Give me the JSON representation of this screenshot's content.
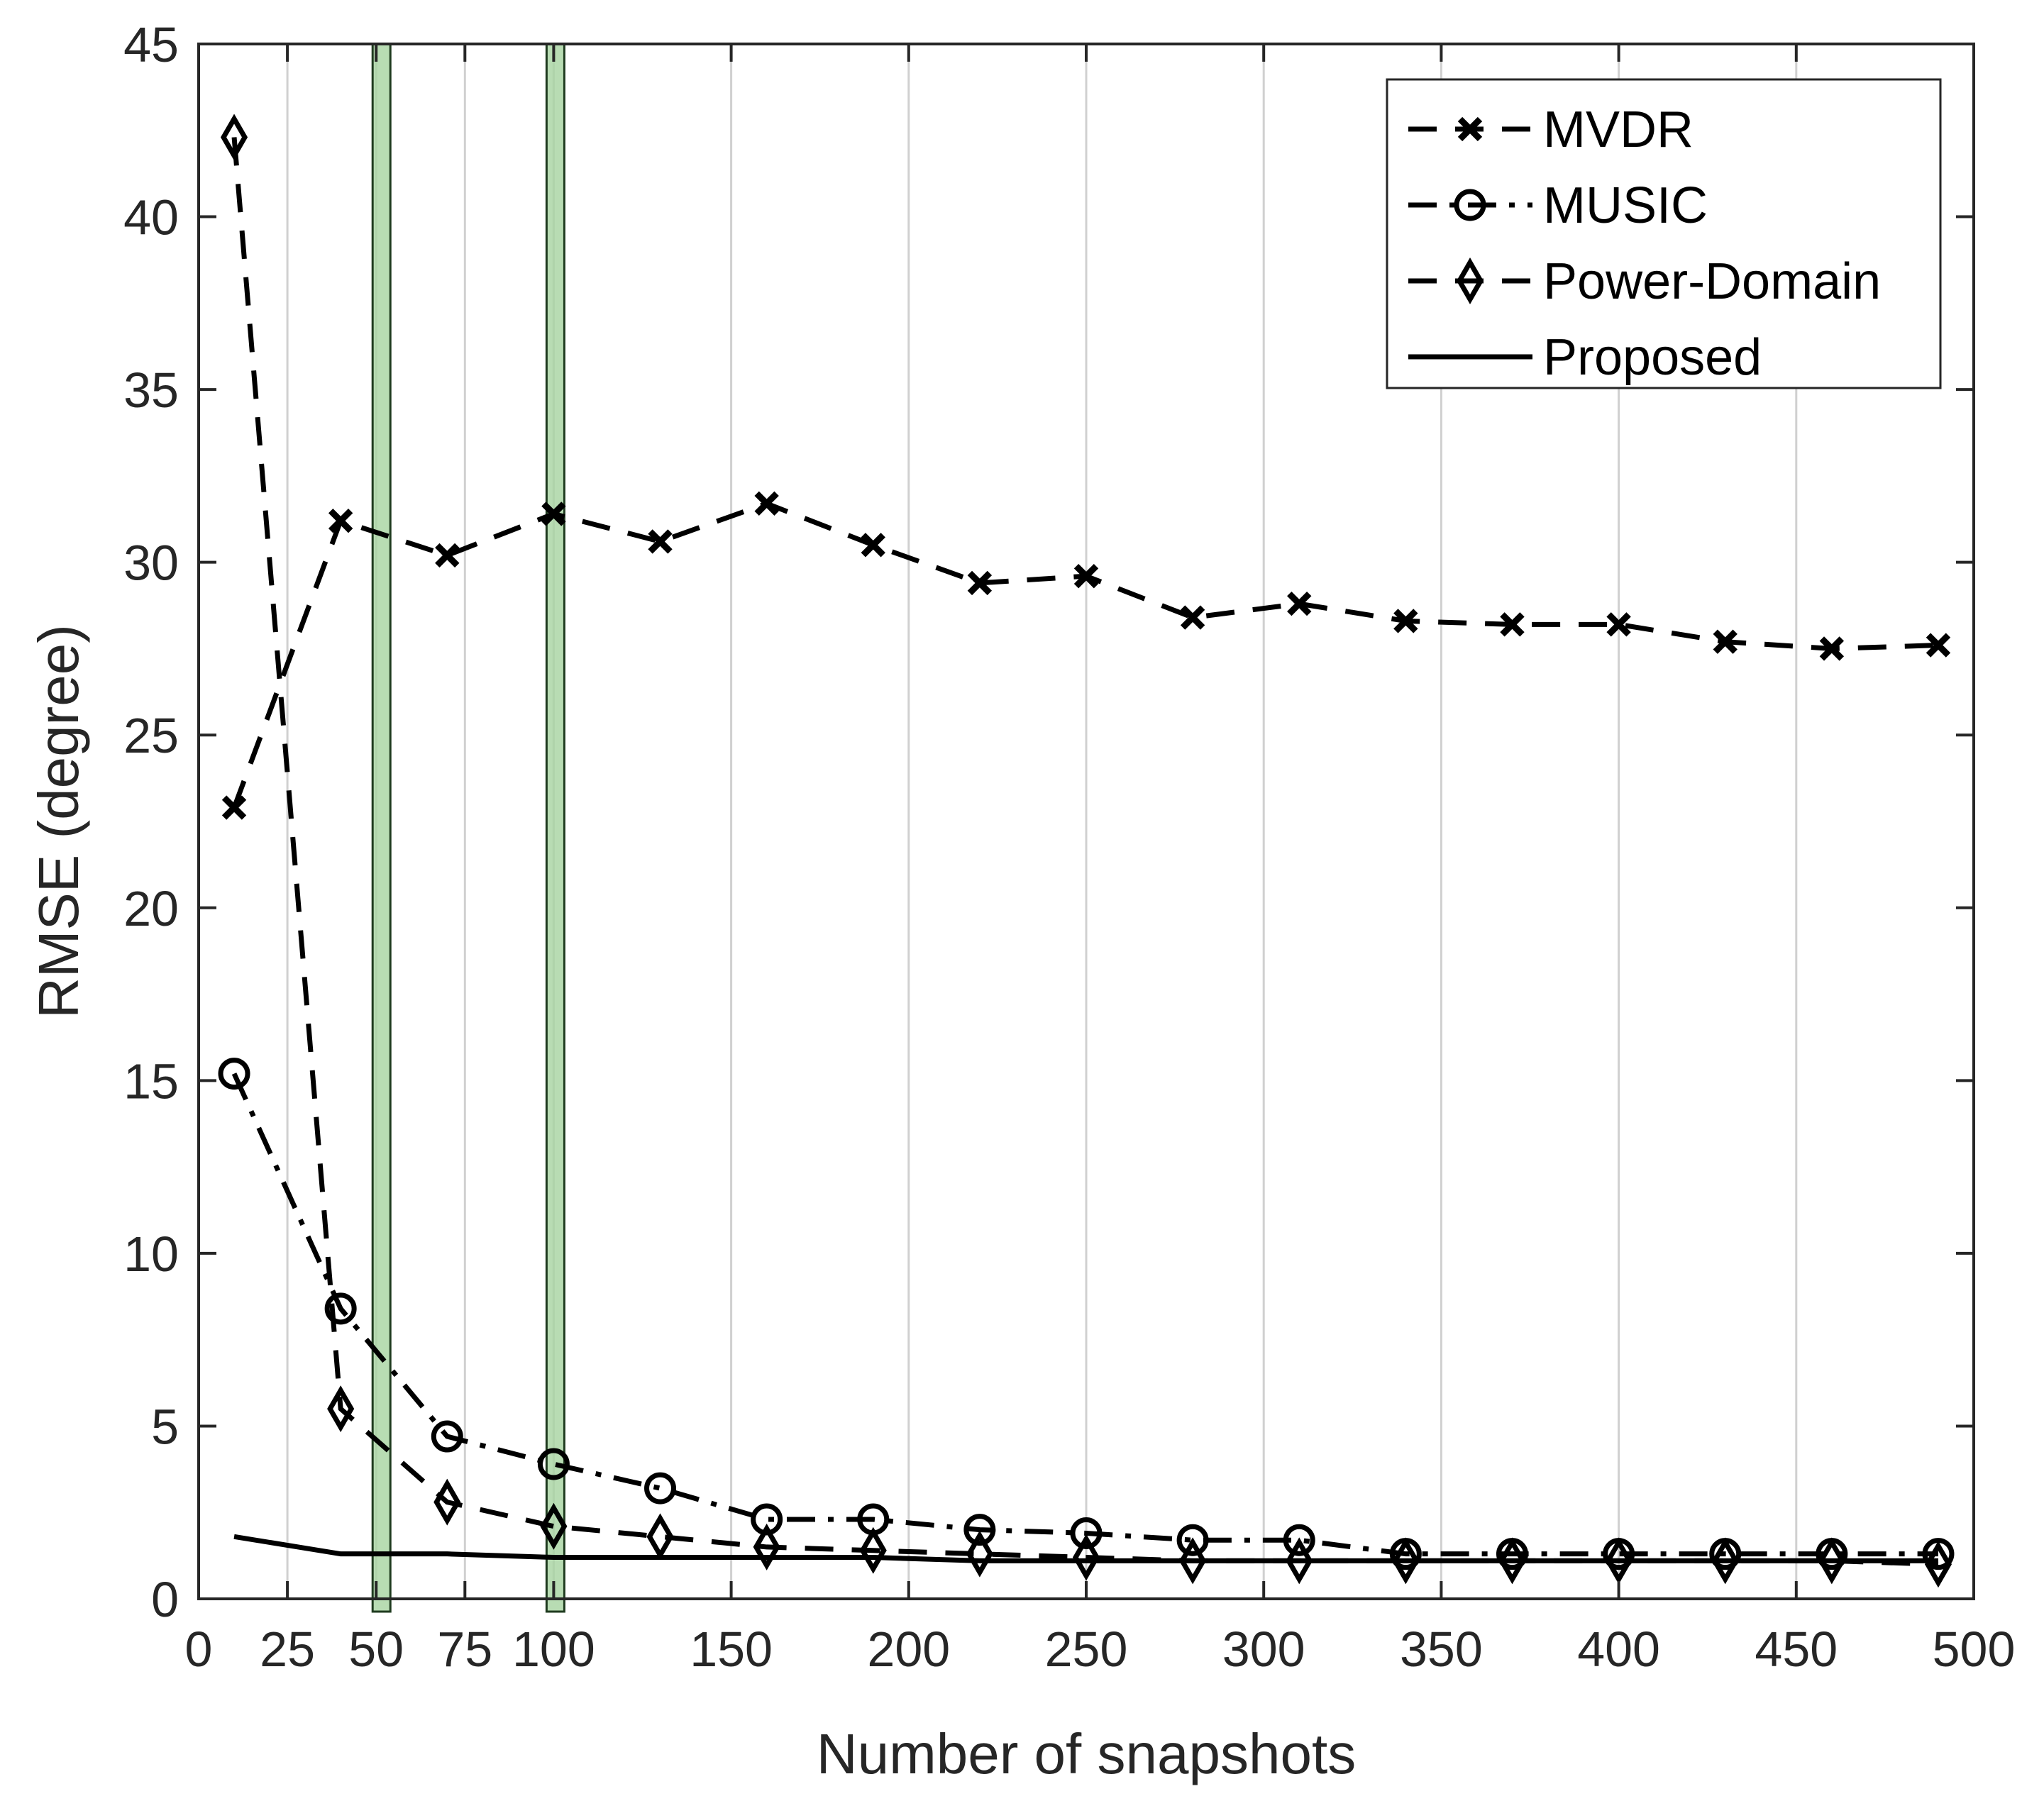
{
  "chart_data": {
    "type": "line",
    "title": "",
    "xlabel": "Number of snapshots",
    "ylabel": "RMSE (degree)",
    "xlim": [
      0,
      500
    ],
    "ylim": [
      0,
      45
    ],
    "xticks": [
      0,
      25,
      50,
      75,
      100,
      150,
      200,
      250,
      300,
      350,
      400,
      450,
      500
    ],
    "yticks": [
      0,
      5,
      10,
      15,
      20,
      25,
      30,
      35,
      40,
      45
    ],
    "xtick_labels": [
      "0",
      "25",
      "50",
      "75",
      "100",
      "150",
      "200",
      "250",
      "300",
      "350",
      "400",
      "450",
      "500"
    ],
    "ytick_labels": [
      "0",
      "5",
      "10",
      "15",
      "20",
      "25",
      "30",
      "35",
      "40",
      "45"
    ],
    "grid": "vertical",
    "legend_position": "top-right",
    "highlight_bands": [
      {
        "x_start": 49,
        "x_end": 54,
        "color": "#a6d3a0"
      },
      {
        "x_start": 98,
        "x_end": 103,
        "color": "#a6d3a0"
      }
    ],
    "x": [
      10,
      40,
      70,
      100,
      130,
      160,
      190,
      220,
      250,
      280,
      310,
      340,
      370,
      400,
      430,
      460,
      490
    ],
    "series": [
      {
        "name": "MVDR",
        "line_style": "dashed",
        "marker": "x",
        "values": [
          22.9,
          31.2,
          30.2,
          31.4,
          30.6,
          31.7,
          30.5,
          29.4,
          29.6,
          28.4,
          28.8,
          28.3,
          28.2,
          28.2,
          27.7,
          27.5,
          27.6
        ]
      },
      {
        "name": "MUSIC",
        "line_style": "dashdot",
        "marker": "circle",
        "values": [
          15.2,
          8.4,
          4.7,
          3.9,
          3.2,
          2.3,
          2.3,
          2.0,
          1.9,
          1.7,
          1.7,
          1.3,
          1.3,
          1.3,
          1.3,
          1.3,
          1.3
        ]
      },
      {
        "name": "Power-Domain",
        "line_style": "dashed",
        "marker": "diamond",
        "values": [
          42.3,
          5.5,
          2.8,
          2.1,
          1.8,
          1.5,
          1.4,
          1.3,
          1.2,
          1.1,
          1.1,
          1.1,
          1.1,
          1.1,
          1.1,
          1.1,
          1.0
        ]
      },
      {
        "name": "Proposed",
        "line_style": "solid",
        "marker": "none",
        "values": [
          1.8,
          1.3,
          1.3,
          1.2,
          1.2,
          1.2,
          1.2,
          1.1,
          1.1,
          1.1,
          1.1,
          1.1,
          1.1,
          1.1,
          1.1,
          1.1,
          1.1
        ]
      }
    ]
  }
}
